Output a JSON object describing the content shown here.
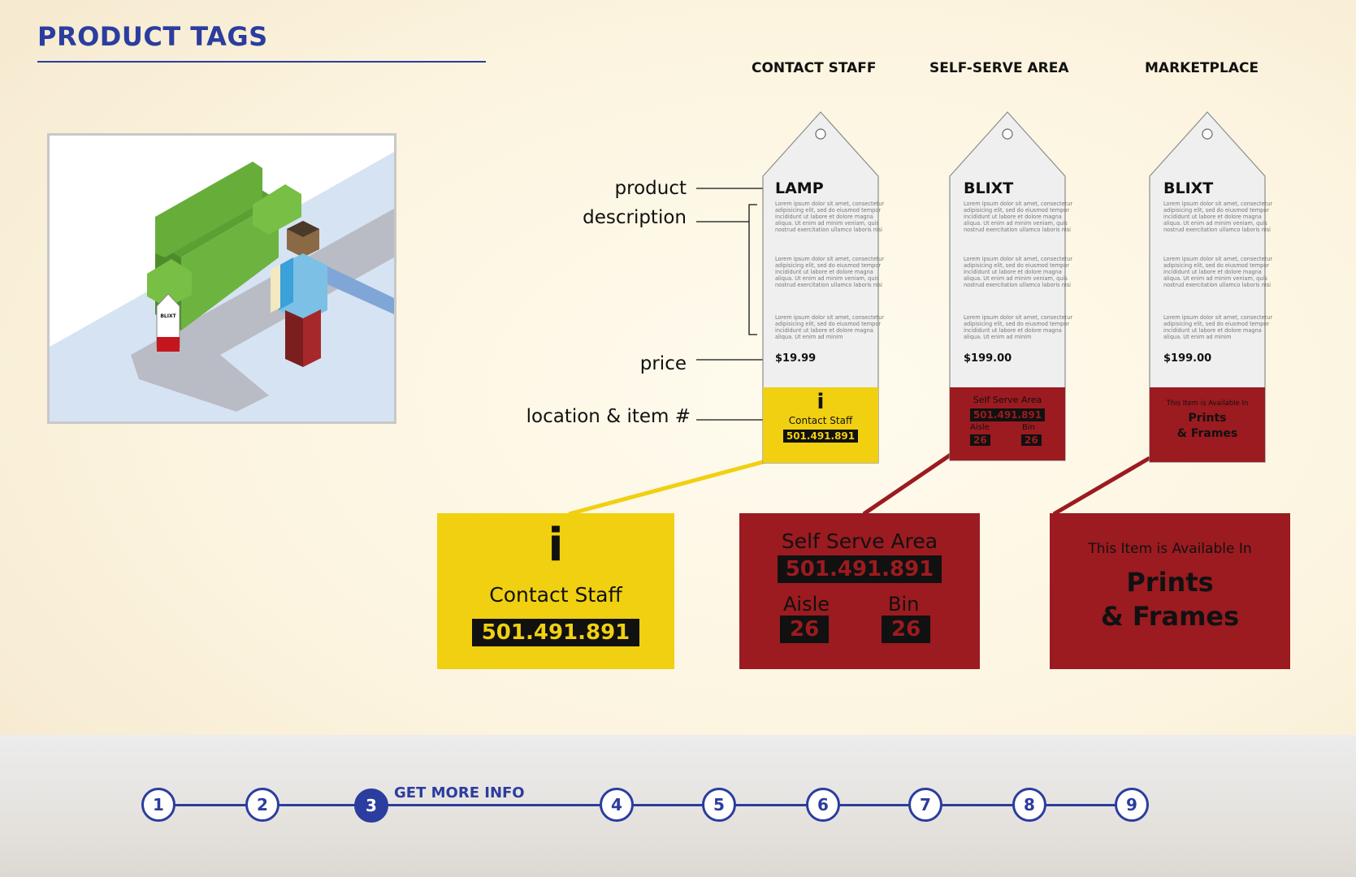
{
  "page": {
    "title": "PRODUCT TAGS"
  },
  "columns": [
    "CONTACT STAFF",
    "SELF-SERVE AREA",
    "MARKETPLACE"
  ],
  "annotations": {
    "product": "product",
    "description": "description",
    "price": "price",
    "location": "location & item #"
  },
  "illustration": {
    "tag_text": "BLIXT"
  },
  "lorem": "Lorem ipsum dolor sit amet, consectetur adipisicing elit, sed do eiusmod tempor incididunt ut labore et dolore magna aliqua. Ut enim ad minim veniam, quis nostrud exercitation ullamco laboris nisi",
  "lorem_short": "Lorem ipsum dolor sit amet, consectetur adipisicing elit, sed do eiusmod tempor incididunt ut labore et dolore magna aliqua. Ut enim ad minim",
  "tags": [
    {
      "name": "LAMP",
      "price": "$19.99",
      "location": "Contact Staff",
      "item": "501.491.891",
      "icon": "info-icon"
    },
    {
      "name": "BLIXT",
      "price": "$199.00",
      "location": "Self Serve Area",
      "item": "501.491.891",
      "aisle_label": "Aisle",
      "aisle": "26",
      "bin_label": "Bin",
      "bin": "26"
    },
    {
      "name": "BLIXT",
      "price": "$199.00",
      "available_label": "This Item is Available In",
      "section_line1": "Prints",
      "section_line2": "& Frames"
    }
  ],
  "zoom": {
    "contact": {
      "icon_glyph": "i",
      "location": "Contact Staff",
      "item": "501.491.891"
    },
    "selfserve": {
      "location": "Self Serve Area",
      "item": "501.491.891",
      "aisle_label": "Aisle",
      "aisle": "26",
      "bin_label": "Bin",
      "bin": "26"
    },
    "marketplace": {
      "available_label": "This Item is Available In",
      "line1": "Prints",
      "line2": "& Frames"
    }
  },
  "steps": {
    "items": [
      "1",
      "2",
      "3",
      "4",
      "5",
      "6",
      "7",
      "8",
      "9"
    ],
    "active_index": 2,
    "active_label": "GET MORE INFO"
  },
  "colors": {
    "brand_blue": "#2b3d9e",
    "yellow": "#f0d011",
    "red": "#9b1b20",
    "tag_body": "#efefef"
  }
}
